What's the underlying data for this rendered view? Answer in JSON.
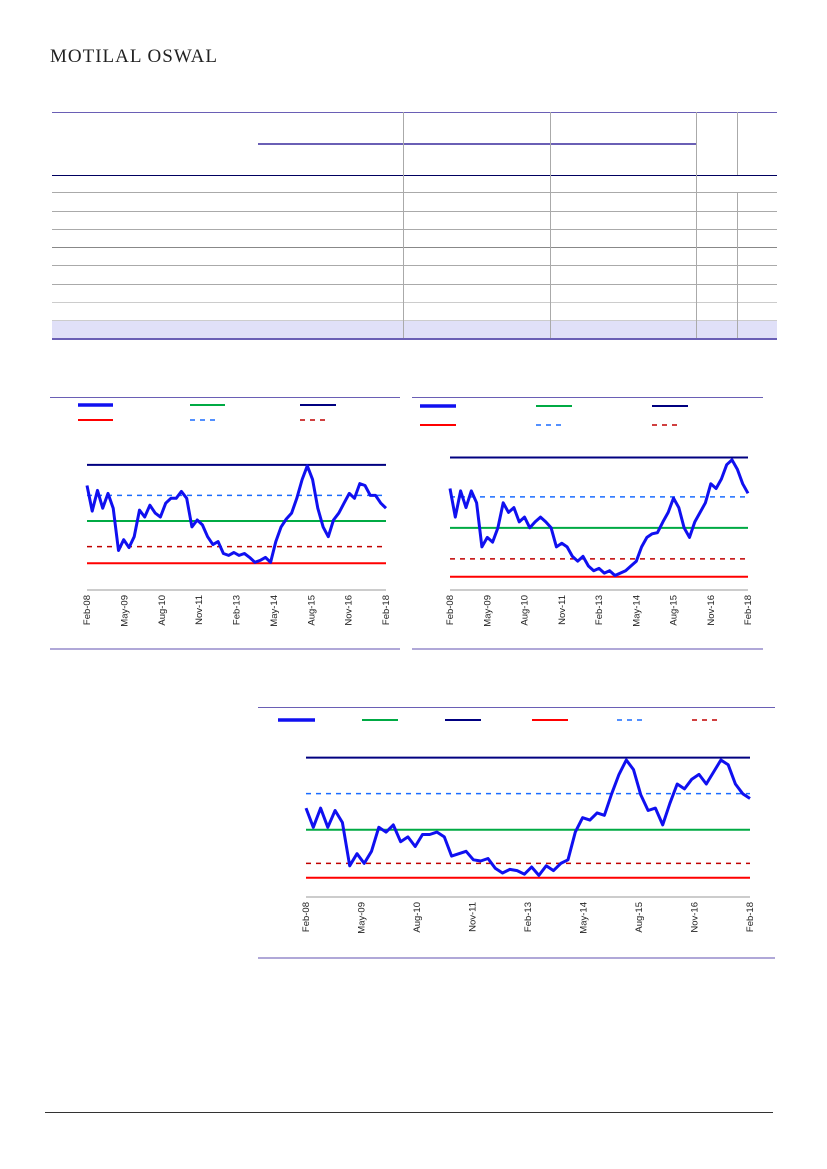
{
  "header": {
    "logo_text": "MOTILAL OSWAL"
  },
  "colors": {
    "series": "#1010f0",
    "avg": "#00aa44",
    "max": "#000080",
    "min": "#ff0000",
    "plus_sd": "#1a6cff",
    "minus_sd": "#c00000",
    "rule": "#6a5fb5",
    "highlight": "#e0e0f8"
  },
  "chart_data": [
    {
      "type": "line",
      "id": "chart1",
      "x_labels": [
        "Feb-08",
        "May-09",
        "Aug-10",
        "Nov-11",
        "Feb-13",
        "May-14",
        "Aug-15",
        "Nov-16",
        "Feb-18"
      ],
      "levels": {
        "max": 100,
        "plus_sd": 69,
        "avg": 43,
        "minus_sd": 17,
        "min": 0
      },
      "ylim": [
        -20,
        110
      ],
      "values": [
        79,
        53,
        74,
        56,
        71,
        56,
        13,
        24,
        16,
        27,
        54,
        47,
        59,
        51,
        47,
        61,
        66,
        66,
        73,
        66,
        37,
        44,
        39,
        27,
        19,
        22,
        10,
        8,
        11,
        8,
        10,
        6,
        1,
        3,
        6,
        1,
        22,
        37,
        45,
        51,
        66,
        85,
        99,
        85,
        56,
        37,
        27,
        44,
        51,
        61,
        71,
        66,
        81,
        79,
        69,
        69,
        61,
        56
      ]
    },
    {
      "type": "line",
      "id": "chart2",
      "x_labels": [
        "Feb-08",
        "May-09",
        "Aug-10",
        "Nov-11",
        "Feb-13",
        "May-14",
        "Aug-15",
        "Nov-16",
        "Feb-18"
      ],
      "levels": {
        "max": 100,
        "plus_sd": 67,
        "avg": 41,
        "minus_sd": 15,
        "min": 0
      },
      "ylim": [
        -12,
        108
      ],
      "values": [
        74,
        50,
        72,
        58,
        72,
        62,
        25,
        33,
        29,
        41,
        62,
        54,
        58,
        46,
        50,
        41,
        46,
        50,
        46,
        41,
        25,
        28,
        25,
        17,
        13,
        17,
        9,
        5,
        7,
        3,
        5,
        1,
        3,
        5,
        9,
        13,
        25,
        33,
        36,
        37,
        46,
        54,
        66,
        58,
        41,
        33,
        46,
        54,
        62,
        78,
        74,
        82,
        94,
        98,
        90,
        78,
        70
      ]
    },
    {
      "type": "line",
      "id": "chart3",
      "x_labels": [
        "Feb-08",
        "May-09",
        "Aug-10",
        "Nov-11",
        "Feb-13",
        "May-14",
        "Aug-15",
        "Nov-16",
        "Feb-18"
      ],
      "levels": {
        "max": 100,
        "plus_sd": 70,
        "avg": 40,
        "minus_sd": 12,
        "min": 0
      },
      "ylim": [
        -16,
        108
      ],
      "values": [
        58,
        42,
        58,
        42,
        56,
        46,
        10,
        20,
        12,
        22,
        42,
        38,
        44,
        30,
        34,
        26,
        36,
        36,
        38,
        34,
        18,
        20,
        22,
        15,
        14,
        16,
        8,
        4,
        7,
        6,
        3,
        9,
        2,
        10,
        6,
        12,
        15,
        38,
        50,
        48,
        54,
        52,
        70,
        86,
        98,
        90,
        69,
        56,
        58,
        44,
        62,
        78,
        74,
        82,
        86,
        78,
        88,
        98,
        94,
        78,
        70,
        66
      ]
    }
  ]
}
